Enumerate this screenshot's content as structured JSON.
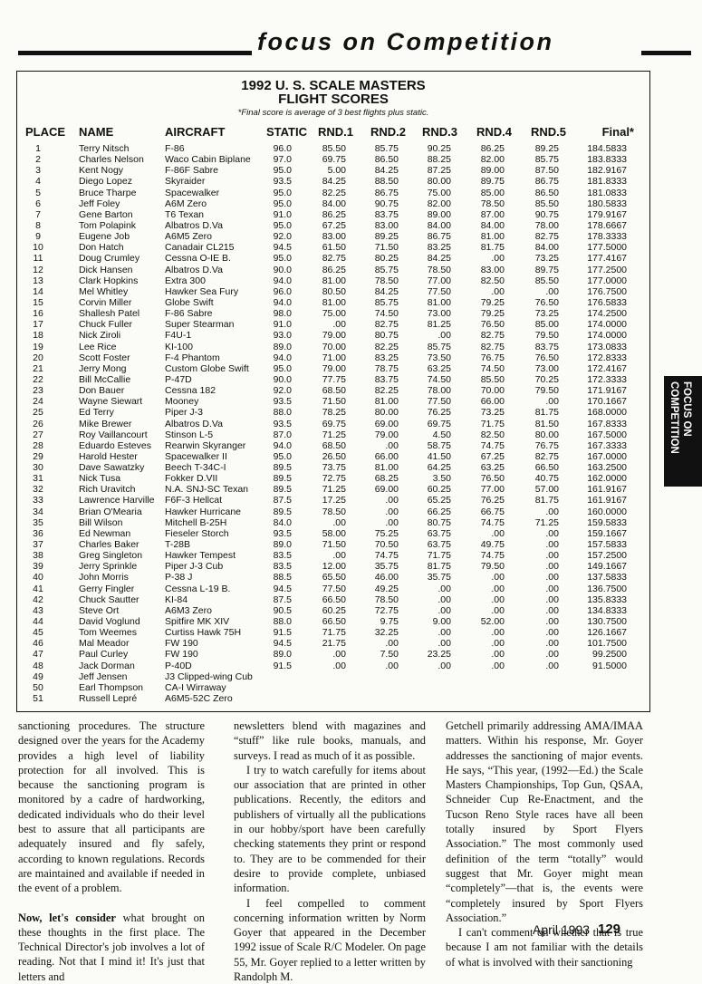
{
  "header": {
    "section": "focus on Competition"
  },
  "table": {
    "title": [
      "1992 U. S. SCALE MASTERS",
      "FLIGHT SCORES"
    ],
    "note": "*Final score is average of 3 best flights plus static.",
    "columns": [
      "PLACE",
      "NAME",
      "AIRCRAFT",
      "STATIC",
      "RND.1",
      "RND.2",
      "RND.3",
      "RND.4",
      "RND.5",
      "Final*"
    ],
    "rows": [
      [
        "1",
        "Terry Nitsch",
        "F-86",
        "96.0",
        "85.50",
        "85.75",
        "90.25",
        "86.25",
        "89.25",
        "184.5833"
      ],
      [
        "2",
        "Charles Nelson",
        "Waco Cabin Biplane",
        "97.0",
        "69.75",
        "86.50",
        "88.25",
        "82.00",
        "85.75",
        "183.8333"
      ],
      [
        "3",
        "Kent Nogy",
        "F-86F Sabre",
        "95.0",
        "5.00",
        "84.25",
        "87.25",
        "89.00",
        "87.50",
        "182.9167"
      ],
      [
        "4",
        "Diego Lopez",
        "Skyraider",
        "93.5",
        "84.25",
        "88.50",
        "80.00",
        "89.75",
        "86.75",
        "181.8333"
      ],
      [
        "5",
        "Bruce Tharpe",
        "Spacewalker",
        "95.0",
        "82.25",
        "86.75",
        "75.00",
        "85.00",
        "86.50",
        "181.0833"
      ],
      [
        "6",
        "Jeff Foley",
        "A6M Zero",
        "95.0",
        "84.00",
        "90.75",
        "82.00",
        "78.50",
        "85.50",
        "180.5833"
      ],
      [
        "7",
        "Gene Barton",
        "T6 Texan",
        "91.0",
        "86.25",
        "83.75",
        "89.00",
        "87.00",
        "90.75",
        "179.9167"
      ],
      [
        "8",
        "Tom Polapink",
        "Albatros D.Va",
        "95.0",
        "67.25",
        "83.00",
        "84.00",
        "84.00",
        "78.00",
        "178.6667"
      ],
      [
        "9",
        "Eugene Job",
        "A6M5 Zero",
        "92.0",
        "83.00",
        "89.25",
        "86.75",
        "81.00",
        "82.75",
        "178.3333"
      ],
      [
        "10",
        "Don Hatch",
        "Canadair CL215",
        "94.5",
        "61.50",
        "71.50",
        "83.25",
        "81.75",
        "84.00",
        "177.5000"
      ],
      [
        "11",
        "Doug Crumley",
        "Cessna O-IE B.",
        "95.0",
        "82.75",
        "80.25",
        "84.25",
        ".00",
        "73.25",
        "177.4167"
      ],
      [
        "12",
        "Dick Hansen",
        "Albatros D.Va",
        "90.0",
        "86.25",
        "85.75",
        "78.50",
        "83.00",
        "89.75",
        "177.2500"
      ],
      [
        "13",
        "Clark Hopkins",
        "Extra 300",
        "94.0",
        "81.00",
        "78.50",
        "77.00",
        "82.50",
        "85.50",
        "177.0000"
      ],
      [
        "14",
        "Mel Whitley",
        "Hawker Sea Fury",
        "96.0",
        "80.50",
        "84.25",
        "77.50",
        ".00",
        ".00",
        "176.7500"
      ],
      [
        "15",
        "Corvin Miller",
        "Globe Swift",
        "94.0",
        "81.00",
        "85.75",
        "81.00",
        "79.25",
        "76.50",
        "176.5833"
      ],
      [
        "16",
        "Shallesh Patel",
        "F-86 Sabre",
        "98.0",
        "75.00",
        "74.50",
        "73.00",
        "79.25",
        "73.25",
        "174.2500"
      ],
      [
        "17",
        "Chuck Fuller",
        "Super Stearman",
        "91.0",
        ".00",
        "82.75",
        "81.25",
        "76.50",
        "85.00",
        "174.0000"
      ],
      [
        "18",
        "Nick Ziroli",
        "F4U-1",
        "93.0",
        "79.00",
        "80.75",
        ".00",
        "82.75",
        "79.50",
        "174.0000"
      ],
      [
        "19",
        "Lee Rice",
        "KI-100",
        "89.0",
        "70.00",
        "82.25",
        "85.75",
        "82.75",
        "83.75",
        "173.0833"
      ],
      [
        "20",
        "Scott Foster",
        "F-4 Phantom",
        "94.0",
        "71.00",
        "83.25",
        "73.50",
        "76.75",
        "76.50",
        "172.8333"
      ],
      [
        "21",
        "Jerry Mong",
        "Custom Globe Swift",
        "95.0",
        "79.00",
        "78.75",
        "63.25",
        "74.50",
        "73.00",
        "172.4167"
      ],
      [
        "22",
        "Bill McCallie",
        "P-47D",
        "90.0",
        "77.75",
        "83.75",
        "74.50",
        "85.50",
        "70.25",
        "172.3333"
      ],
      [
        "23",
        "Don Bauer",
        "Cessna 182",
        "92.0",
        "68.50",
        "82.25",
        "78.00",
        "70.00",
        "79.50",
        "171.9167"
      ],
      [
        "24",
        "Wayne Siewart",
        "Mooney",
        "93.5",
        "71.50",
        "81.00",
        "77.50",
        "66.00",
        ".00",
        "170.1667"
      ],
      [
        "25",
        "Ed Terry",
        "Piper J-3",
        "88.0",
        "78.25",
        "80.00",
        "76.25",
        "73.25",
        "81.75",
        "168.0000"
      ],
      [
        "26",
        "Mike Brewer",
        "Albatros D.Va",
        "93.5",
        "69.75",
        "69.00",
        "69.75",
        "71.75",
        "81.50",
        "167.8333"
      ],
      [
        "27",
        "Roy Vaillancourt",
        "Stinson L-5",
        "87.0",
        "71.25",
        "79.00",
        "4.50",
        "82.50",
        "80.00",
        "167.5000"
      ],
      [
        "28",
        "Eduardo Esteves",
        "Rearwin Skyranger",
        "94.0",
        "68.50",
        ".00",
        "58.75",
        "74.75",
        "76.75",
        "167.3333"
      ],
      [
        "29",
        "Harold Hester",
        "Spacewalker II",
        "95.0",
        "26.50",
        "66.00",
        "41.50",
        "67.25",
        "82.75",
        "167.0000"
      ],
      [
        "30",
        "Dave Sawatzky",
        "Beech T-34C-I",
        "89.5",
        "73.75",
        "81.00",
        "64.25",
        "63.25",
        "66.50",
        "163.2500"
      ],
      [
        "31",
        "Nick Tusa",
        "Fokker D.VII",
        "89.5",
        "72.75",
        "68.25",
        "3.50",
        "76.50",
        "40.75",
        "162.0000"
      ],
      [
        "32",
        "Rich Uravitch",
        "N.A. SNJ-SC Texan",
        "89.5",
        "71.25",
        "69.00",
        "60.25",
        "77.00",
        "57.00",
        "161.9167"
      ],
      [
        "33",
        "Lawrence Harville",
        "F6F-3 Hellcat",
        "87.5",
        "17.25",
        ".00",
        "65.25",
        "76.25",
        "81.75",
        "161.9167"
      ],
      [
        "34",
        "Brian O'Mearia",
        "Hawker Hurricane",
        "89.5",
        "78.50",
        ".00",
        "66.25",
        "66.75",
        ".00",
        "160.0000"
      ],
      [
        "35",
        "Bill Wilson",
        "Mitchell B-25H",
        "84.0",
        ".00",
        ".00",
        "80.75",
        "74.75",
        "71.25",
        "159.5833"
      ],
      [
        "36",
        "Ed Newman",
        "Fieseler Storch",
        "93.5",
        "58.00",
        "75.25",
        "63.75",
        ".00",
        ".00",
        "159.1667"
      ],
      [
        "37",
        "Charles Baker",
        "T-28B",
        "89.0",
        "71.50",
        "70.50",
        "63.75",
        "49.75",
        ".00",
        "157.5833"
      ],
      [
        "38",
        "Greg Singleton",
        "Hawker Tempest",
        "83.5",
        ".00",
        "74.75",
        "71.75",
        "74.75",
        ".00",
        "157.2500"
      ],
      [
        "39",
        "Jerry Sprinkle",
        "Piper J-3 Cub",
        "83.5",
        "12.00",
        "35.75",
        "81.75",
        "79.50",
        ".00",
        "149.1667"
      ],
      [
        "40",
        "John Morris",
        "P-38 J",
        "88.5",
        "65.50",
        "46.00",
        "35.75",
        ".00",
        ".00",
        "137.5833"
      ],
      [
        "41",
        "Gerry Fingler",
        "Cessna L-19 B.",
        "94.5",
        "77.50",
        "49.25",
        ".00",
        ".00",
        ".00",
        "136.7500"
      ],
      [
        "42",
        "Chuck Sautter",
        "KI-84",
        "87.5",
        "66.50",
        "78.50",
        ".00",
        ".00",
        ".00",
        "135.8333"
      ],
      [
        "43",
        "Steve Ort",
        "A6M3 Zero",
        "90.5",
        "60.25",
        "72.75",
        ".00",
        ".00",
        ".00",
        "134.8333"
      ],
      [
        "44",
        "David Voglund",
        "Spitfire MK XIV",
        "88.0",
        "66.50",
        "9.75",
        "9.00",
        "52.00",
        ".00",
        "130.7500"
      ],
      [
        "45",
        "Tom Weemes",
        "Curtiss Hawk 75H",
        "91.5",
        "71.75",
        "32.25",
        ".00",
        ".00",
        ".00",
        "126.1667"
      ],
      [
        "46",
        "Mal Meador",
        "FW 190",
        "94.5",
        "21.75",
        ".00",
        ".00",
        ".00",
        ".00",
        "101.7500"
      ],
      [
        "47",
        "Paul Curley",
        "FW 190",
        "89.0",
        ".00",
        "7.50",
        "23.25",
        ".00",
        ".00",
        "99.2500"
      ],
      [
        "48",
        "Jack Dorman",
        "P-40D",
        "91.5",
        ".00",
        ".00",
        ".00",
        ".00",
        ".00",
        "91.5000"
      ],
      [
        "49",
        "Jeff Jensen",
        "J3 Clipped-wing Cub"
      ],
      [
        "50",
        "Earl Thompson",
        "CA-I Wirraway"
      ],
      [
        "51",
        "Russell Lepré",
        "A6M5-52C Zero"
      ]
    ]
  },
  "article": {
    "columns": [
      [
        {
          "text": "sanctioning procedures. The structure designed over the years for the Academy provides a high level of liability protection for all involved. This is because the sanctioning program is monitored by a cadre of hardworking, dedicated individuals who do their level best to assure that all participants are adequately insured and fly safely, according to known regulations. Records are maintained and available if needed in the event of a problem."
        },
        {
          "lead": "Now, let's consider",
          "text": " what brought on these thoughts in the first place. The Technical Director's job involves a lot of reading. Not that I mind it! It's just that letters and"
        }
      ],
      [
        {
          "text": "newsletters blend with magazines and “stuff” like rule books, manuals, and surveys. I read as much of it as possible."
        },
        {
          "text": "I try to watch carefully for items about our association that are printed in other publications. Recently, the editors and publishers of virtually all the publications in our hobby/sport have been carefully checking statements they print or respond to. They are to be commended for their desire to provide complete, unbiased information."
        },
        {
          "text": "I feel compelled to comment concerning information written by Norm Goyer that appeared in the December 1992 issue of Scale R/C Modeler. On page 55, Mr. Goyer replied to a letter written by Randolph M."
        }
      ],
      [
        {
          "text": "Getchell primarily addressing AMA/IMAA matters. Within his response, Mr. Goyer addresses the sanctioning of major events. He says, “This year, (1992—Ed.) the Scale Masters Championships, Top Gun, QSAA, Schneider Cup Re-Enactment, and the Tucson Reno Style races have all been totally insured by Sport Flyers Association.” The most commonly used definition of the term “totally” would suggest that Mr. Goyer might mean “completely”—that is, the events were “completely insured by Sport Flyers Association.”"
        },
        {
          "text": "I can't comment on whether that is true because I am not familiar with the details of what is involved with their sanctioning"
        }
      ]
    ]
  },
  "footer": {
    "date": "April 1993",
    "page": "129"
  },
  "side_tab": [
    "FOCUS ON",
    "COMPETITION"
  ]
}
